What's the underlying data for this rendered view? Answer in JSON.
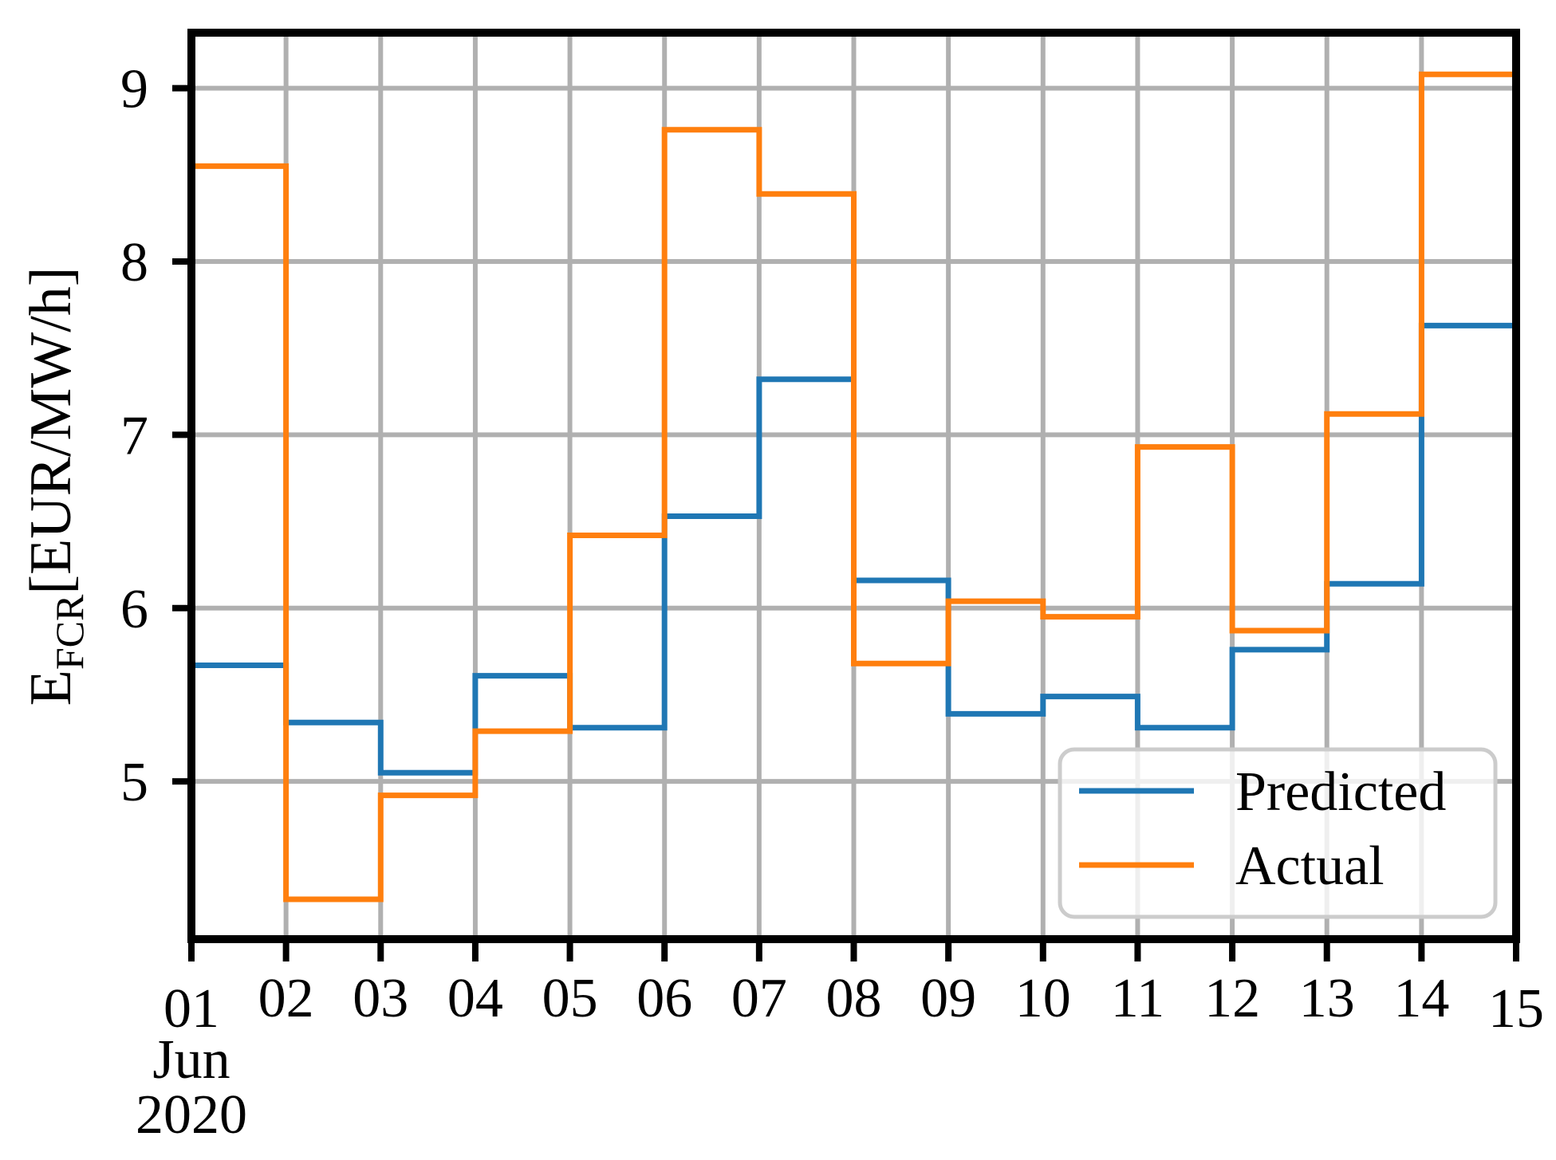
{
  "chart_data": {
    "type": "line",
    "subtype": "step-post",
    "title": "",
    "xlabel": "",
    "ylabel": "E_FCR[EUR/MW/h]",
    "ylabel_parts": {
      "main": "E",
      "sub": "FCR",
      "units": "[EUR/MW/h]"
    },
    "x_tick_labels": [
      "01",
      "02",
      "03",
      "04",
      "05",
      "06",
      "07",
      "08",
      "09",
      "10",
      "11",
      "12",
      "13",
      "14",
      "15"
    ],
    "x_offset_labels": {
      "month": "Jun",
      "year": "2020"
    },
    "x_days": [
      1,
      2,
      3,
      4,
      5,
      6,
      7,
      8,
      9,
      10,
      11,
      12,
      13,
      14
    ],
    "x_end_day": 15,
    "xlim": [
      1,
      15
    ],
    "ylim": [
      4.09,
      9.32
    ],
    "yticks": [
      5,
      6,
      7,
      8,
      9
    ],
    "grid": true,
    "series": [
      {
        "name": "Predicted",
        "color": "#1f77b4",
        "values": [
          5.67,
          5.34,
          5.05,
          5.61,
          5.31,
          6.53,
          7.32,
          6.16,
          5.39,
          5.49,
          5.31,
          5.76,
          6.14,
          7.63
        ]
      },
      {
        "name": "Actual",
        "color": "#ff7f0e",
        "values": [
          8.55,
          4.32,
          4.92,
          5.29,
          6.42,
          8.76,
          8.39,
          5.68,
          6.04,
          5.95,
          6.93,
          5.87,
          7.12,
          9.08
        ]
      }
    ],
    "legend": {
      "position": "lower right",
      "entries": [
        "Predicted",
        "Actual"
      ]
    },
    "colors": {
      "grid": "#b0b0b0",
      "spine": "#000000",
      "text": "#000000",
      "legend_border": "#cccccc",
      "legend_bg": "rgba(255,255,255,0.8)"
    }
  }
}
